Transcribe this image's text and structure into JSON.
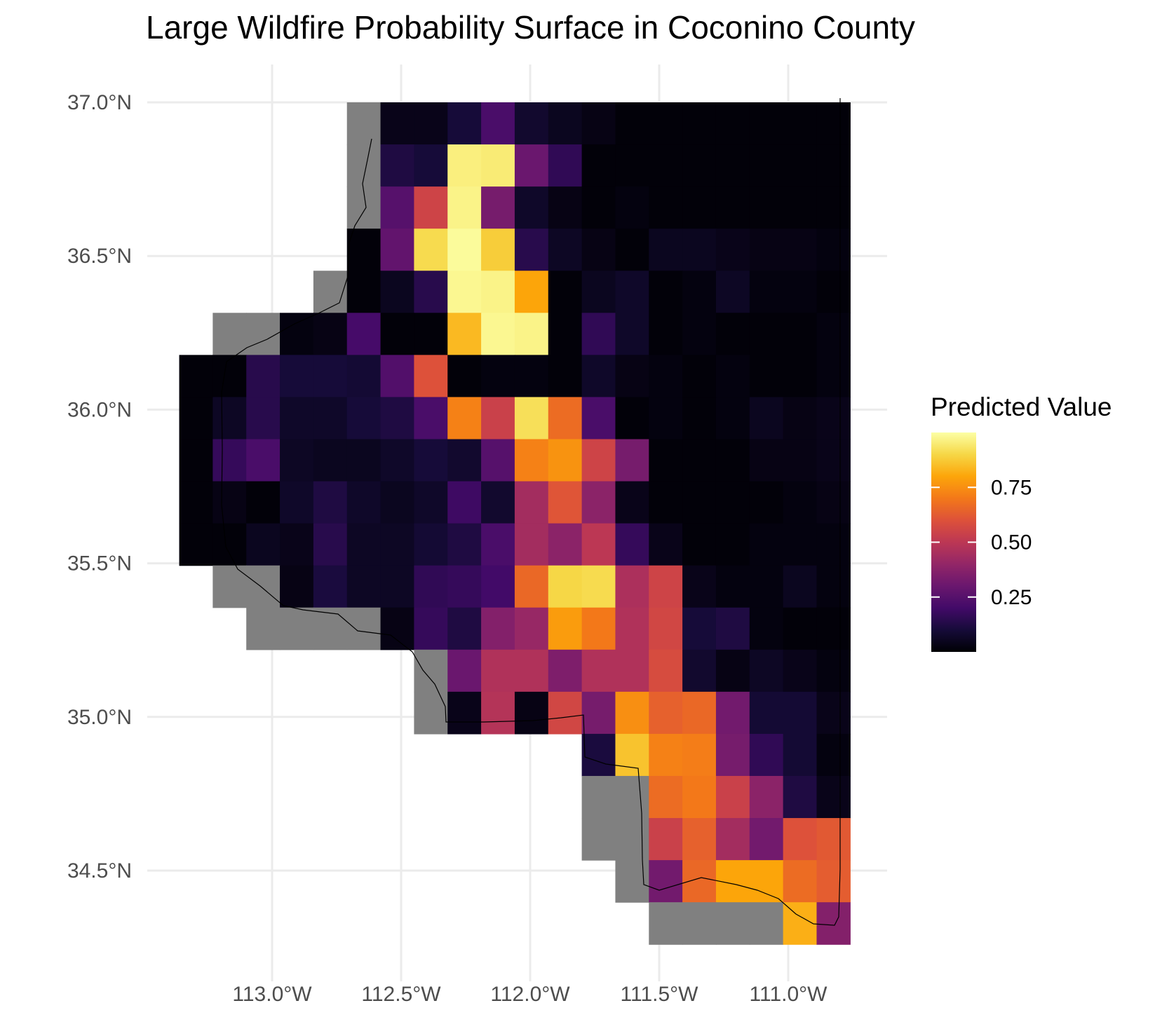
{
  "chart_data": {
    "type": "heatmap",
    "title": "Large Wildfire Probability Surface in Coconino County",
    "x_ticks": [
      {
        "value": -113.0,
        "label": "113.0°W"
      },
      {
        "value": -112.5,
        "label": "112.5°W"
      },
      {
        "value": -112.0,
        "label": "112.0°W"
      },
      {
        "value": -111.5,
        "label": "111.5°W"
      },
      {
        "value": -111.0,
        "label": "111.0°W"
      }
    ],
    "y_ticks": [
      {
        "value": 37.0,
        "label": "37.0°N"
      },
      {
        "value": 36.5,
        "label": "36.5°N"
      },
      {
        "value": 36.0,
        "label": "36.0°N"
      },
      {
        "value": 35.5,
        "label": "35.5°N"
      },
      {
        "value": 35.0,
        "label": "35.0°N"
      },
      {
        "value": 34.5,
        "label": "34.5°N"
      }
    ],
    "xlim": [
      -113.35,
      -110.62
    ],
    "ylim": [
      34.17,
      37.13
    ],
    "grid": true,
    "legend": {
      "title": "Predicted Value",
      "placement": "right",
      "colormap": "inferno",
      "range": [
        0.0,
        1.0
      ],
      "ticks": [
        {
          "value": 0.25,
          "label": "0.25"
        },
        {
          "value": 0.5,
          "label": "0.50"
        },
        {
          "value": 0.75,
          "label": "0.75"
        }
      ]
    },
    "colors": {
      "missing_cell": "#808080",
      "grid": "#ebebeb",
      "outline": "#000000"
    },
    "cell_size_deg": [
      0.13,
      0.137
    ],
    "x_origin": -113.36,
    "y_top": 37.0,
    "columns": 20,
    "rows": 21,
    "grid_values": [
      [
        null,
        null,
        null,
        null,
        null,
        "NA",
        0.04,
        0.04,
        0.1,
        0.22,
        0.08,
        0.05,
        0.03,
        0.01,
        0.01,
        0.01,
        0.01,
        0.01,
        0.01,
        0.01
      ],
      [
        null,
        null,
        null,
        null,
        null,
        "NA",
        0.12,
        0.1,
        0.96,
        0.95,
        0.3,
        0.16,
        0.01,
        0.01,
        0.01,
        0.01,
        0.01,
        0.01,
        0.01,
        0.01
      ],
      [
        null,
        null,
        null,
        null,
        null,
        "NA",
        0.25,
        0.55,
        0.97,
        0.33,
        0.07,
        0.03,
        0.01,
        0.02,
        0.01,
        0.01,
        0.01,
        0.01,
        0.01,
        0.01
      ],
      [
        null,
        null,
        null,
        null,
        null,
        0.01,
        0.28,
        0.91,
        0.99,
        0.88,
        0.14,
        0.06,
        0.03,
        0.01,
        0.05,
        0.05,
        0.04,
        0.03,
        0.03,
        0.02
      ],
      [
        null,
        null,
        null,
        null,
        "NA",
        0.01,
        0.05,
        0.14,
        0.98,
        0.97,
        0.8,
        0.01,
        0.05,
        0.07,
        0.01,
        0.02,
        0.06,
        0.02,
        0.02,
        0.01
      ],
      [
        null,
        "NA",
        "NA",
        0.02,
        0.03,
        0.21,
        0.01,
        0.01,
        0.84,
        0.98,
        0.97,
        0.01,
        0.16,
        0.07,
        0.01,
        0.02,
        0.01,
        0.01,
        0.01,
        0.02
      ],
      [
        0.01,
        0.01,
        0.14,
        0.1,
        0.1,
        0.09,
        0.24,
        0.6,
        0.01,
        0.02,
        0.02,
        0.01,
        0.07,
        0.03,
        0.02,
        0.01,
        0.02,
        0.01,
        0.01,
        0.02
      ],
      [
        0.01,
        0.06,
        0.14,
        0.07,
        0.07,
        0.1,
        0.12,
        0.22,
        0.72,
        0.54,
        0.92,
        0.67,
        0.22,
        0.01,
        0.02,
        0.01,
        0.02,
        0.05,
        0.03,
        0.04
      ],
      [
        0.01,
        0.17,
        0.22,
        0.06,
        0.05,
        0.05,
        0.07,
        0.1,
        0.08,
        0.25,
        0.72,
        0.76,
        0.55,
        0.33,
        0.01,
        0.01,
        0.01,
        0.03,
        0.03,
        0.04
      ],
      [
        0.01,
        0.03,
        0.01,
        0.07,
        0.12,
        0.07,
        0.05,
        0.07,
        0.19,
        0.08,
        0.44,
        0.61,
        0.38,
        0.04,
        0.01,
        0.01,
        0.01,
        0.01,
        0.02,
        0.03
      ],
      [
        0.01,
        0.01,
        0.05,
        0.04,
        0.14,
        0.06,
        0.06,
        0.09,
        0.12,
        0.22,
        0.44,
        0.38,
        0.5,
        0.17,
        0.04,
        0.01,
        0.01,
        0.02,
        0.02,
        0.02
      ],
      [
        null,
        "NA",
        "NA",
        0.03,
        0.11,
        0.06,
        0.06,
        0.16,
        0.17,
        0.2,
        0.66,
        0.9,
        0.91,
        0.46,
        0.55,
        0.04,
        0.02,
        0.02,
        0.05,
        0.02
      ],
      [
        null,
        null,
        "NA",
        "NA",
        "NA",
        "NA",
        0.03,
        0.17,
        0.12,
        0.36,
        0.41,
        0.78,
        0.7,
        0.47,
        0.56,
        0.1,
        0.12,
        0.02,
        0.01,
        0.01
      ],
      [
        null,
        null,
        null,
        null,
        null,
        null,
        null,
        "NA",
        0.3,
        0.47,
        0.47,
        0.35,
        0.47,
        0.47,
        0.58,
        0.08,
        0.03,
        0.06,
        0.04,
        0.02
      ],
      [
        null,
        null,
        null,
        null,
        null,
        null,
        null,
        "NA",
        0.04,
        0.48,
        0.03,
        0.56,
        0.33,
        0.75,
        0.64,
        0.66,
        0.32,
        0.09,
        0.09,
        0.04
      ],
      [
        null,
        null,
        null,
        null,
        null,
        null,
        null,
        null,
        null,
        null,
        null,
        null,
        0.11,
        0.86,
        0.72,
        0.71,
        0.33,
        0.16,
        0.09,
        0.02
      ],
      [
        null,
        null,
        null,
        null,
        null,
        null,
        null,
        null,
        null,
        null,
        null,
        null,
        "NA",
        "NA",
        0.67,
        0.7,
        0.54,
        0.38,
        0.12,
        0.04
      ],
      [
        null,
        null,
        null,
        null,
        null,
        null,
        null,
        null,
        null,
        null,
        null,
        null,
        "NA",
        "NA",
        0.54,
        0.64,
        0.44,
        0.32,
        0.6,
        0.62
      ],
      [
        null,
        null,
        null,
        null,
        null,
        null,
        null,
        null,
        null,
        null,
        null,
        null,
        null,
        "NA",
        0.32,
        0.66,
        0.8,
        0.8,
        0.67,
        0.63
      ],
      [
        null,
        null,
        null,
        null,
        null,
        null,
        null,
        null,
        null,
        null,
        null,
        null,
        null,
        null,
        "NA",
        "NA",
        "NA",
        "NA",
        0.82,
        0.36
      ],
      [
        null,
        null,
        null,
        null,
        null,
        null,
        null,
        null,
        null,
        null,
        null,
        null,
        null,
        null,
        null,
        null,
        null,
        null,
        null,
        null
      ]
    ]
  }
}
